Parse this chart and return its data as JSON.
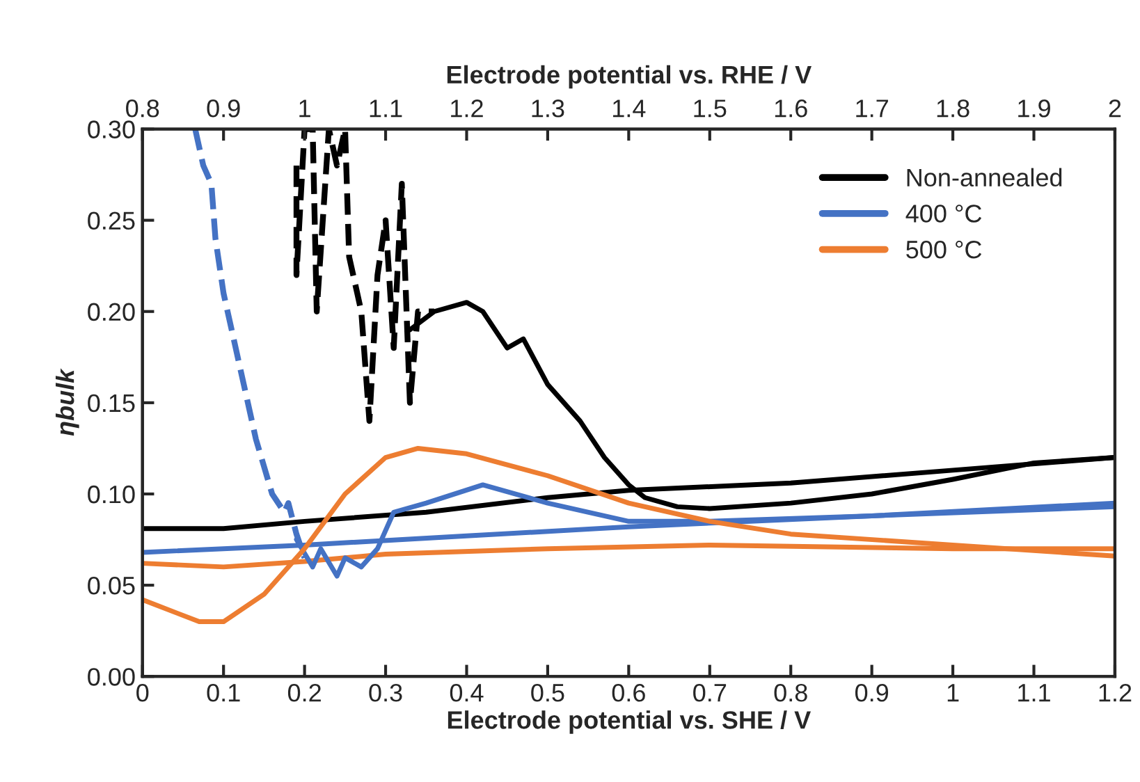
{
  "chart_data": {
    "type": "line",
    "xlabel": "Electrode potential vs. SHE / V",
    "x2label": "Electrode potential vs. RHE / V",
    "ylabel": "ηbulk",
    "xlim": [
      0,
      1.2
    ],
    "xticks": [
      0,
      0.1,
      0.2,
      0.3,
      0.4,
      0.5,
      0.6,
      0.7,
      0.8,
      0.9,
      1,
      1.1,
      1.2
    ],
    "x2lim": [
      0.8,
      2
    ],
    "x2ticks": [
      0.8,
      0.9,
      1,
      1.1,
      1.2,
      1.3,
      1.4,
      1.5,
      1.6,
      1.7,
      1.8,
      1.9,
      2
    ],
    "ylim": [
      0,
      0.3
    ],
    "yticks": [
      {
        "value": 0,
        "label": "0.00"
      },
      {
        "value": 0.05,
        "label": "0.05"
      },
      {
        "value": 0.1,
        "label": "0.10"
      },
      {
        "value": 0.15,
        "label": "0.15"
      },
      {
        "value": 0.2,
        "label": "0.20"
      },
      {
        "value": 0.25,
        "label": "0.25"
      },
      {
        "value": 0.3,
        "label": "0.30"
      }
    ],
    "grid": false,
    "legend": "top right",
    "marker": "none",
    "series": [
      {
        "name": "Non-annealed",
        "color": "#000000",
        "line_style": "solid",
        "x": [
          0,
          0.1,
          0.2,
          0.35,
          0.5,
          0.6,
          0.8,
          1.0,
          1.2
        ],
        "values": [
          0.081,
          0.081,
          0.085,
          0.09,
          0.098,
          0.102,
          0.106,
          0.113,
          0.12
        ]
      },
      {
        "name": "400 °C",
        "color": "#4472c4",
        "line_style": "solid",
        "x": [
          0,
          0.2,
          0.4,
          0.6,
          0.9,
          1.2
        ],
        "values": [
          0.068,
          0.072,
          0.077,
          0.082,
          0.088,
          0.095
        ]
      },
      {
        "name": "500 °C",
        "color": "#ed7d31",
        "line_style": "solid",
        "x": [
          0,
          0.1,
          0.2,
          0.3,
          0.5,
          0.7,
          1.0,
          1.2
        ],
        "values": [
          0.062,
          0.06,
          0.063,
          0.067,
          0.07,
          0.072,
          0.07,
          0.07
        ]
      },
      {
        "color": "#000000",
        "line_style": "solid",
        "x": [
          0.33,
          0.36,
          0.4,
          0.42,
          0.45,
          0.47,
          0.5,
          0.54,
          0.57,
          0.6,
          0.62,
          0.66,
          0.7,
          0.8,
          0.9,
          1.0,
          1.1,
          1.2
        ],
        "values": [
          0.19,
          0.2,
          0.205,
          0.2,
          0.18,
          0.185,
          0.16,
          0.14,
          0.12,
          0.105,
          0.098,
          0.093,
          0.092,
          0.095,
          0.1,
          0.108,
          0.117,
          0.12
        ]
      },
      {
        "color": "#000000",
        "line_style": "dashed",
        "x": [
          0.19,
          0.19,
          0.2,
          0.21,
          0.215,
          0.23,
          0.24,
          0.25,
          0.255,
          0.27,
          0.28,
          0.29,
          0.3,
          0.31,
          0.32,
          0.33,
          0.34,
          0.36
        ],
        "values": [
          0.28,
          0.22,
          0.3,
          0.3,
          0.2,
          0.3,
          0.28,
          0.3,
          0.23,
          0.2,
          0.14,
          0.22,
          0.25,
          0.18,
          0.27,
          0.15,
          0.2,
          0.2
        ]
      },
      {
        "color": "#4472c4",
        "line_style": "solid",
        "x": [
          0.19,
          0.21,
          0.22,
          0.24,
          0.25,
          0.27,
          0.29,
          0.31,
          0.35,
          0.42,
          0.5,
          0.6,
          0.7,
          0.9,
          1.2
        ],
        "values": [
          0.075,
          0.06,
          0.07,
          0.055,
          0.065,
          0.06,
          0.07,
          0.09,
          0.095,
          0.105,
          0.095,
          0.085,
          0.085,
          0.088,
          0.093
        ]
      },
      {
        "color": "#4472c4",
        "line_style": "dashed",
        "x": [
          0.065,
          0.075,
          0.085,
          0.09,
          0.1,
          0.12,
          0.14,
          0.16,
          0.175,
          0.18,
          0.19,
          0.2
        ],
        "values": [
          0.3,
          0.28,
          0.27,
          0.24,
          0.21,
          0.17,
          0.13,
          0.1,
          0.09,
          0.095,
          0.078,
          0.065
        ]
      },
      {
        "color": "#ed7d31",
        "line_style": "solid",
        "x": [
          0,
          0.07,
          0.1,
          0.15,
          0.2,
          0.25,
          0.3,
          0.34,
          0.4,
          0.5,
          0.6,
          0.7,
          0.8,
          1.0,
          1.2
        ],
        "values": [
          0.042,
          0.03,
          0.03,
          0.045,
          0.07,
          0.1,
          0.12,
          0.125,
          0.122,
          0.11,
          0.095,
          0.085,
          0.078,
          0.072,
          0.066
        ]
      }
    ]
  }
}
